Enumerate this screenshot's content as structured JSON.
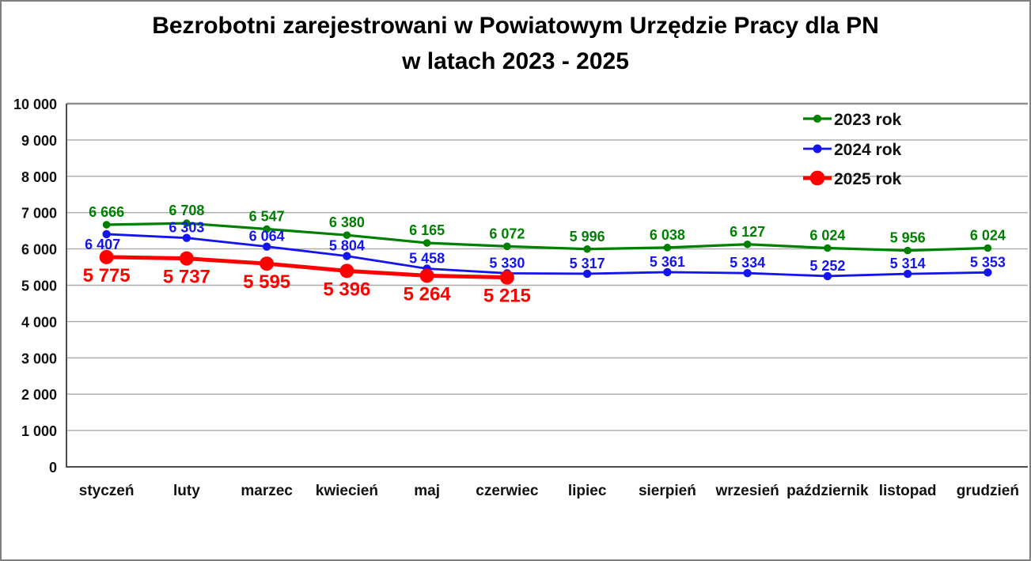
{
  "title": {
    "line1": "Bezrobotni zarejestrowani w Powiatowym Urzędzie Pracy dla PN",
    "line2": "w latach 2023 - 2025"
  },
  "colors": {
    "series_2023": "#008000",
    "series_2024": "#1414f0",
    "series_2025": "#ff0000",
    "gridline": "#ababab",
    "axis": "#4d4d4d",
    "text": "#111111",
    "frame": "#7f7f7f",
    "background": "#ffffff"
  },
  "chart_data": {
    "type": "line",
    "title": "Bezrobotni zarejestrowani w Powiatowym Urzędzie Pracy dla PN w latach 2023 - 2025",
    "xlabel": "",
    "ylabel": "",
    "ylim": [
      0,
      10000
    ],
    "ytick_step": 1000,
    "grid": true,
    "legend_position": "top-right",
    "number_format": "space-thousands",
    "categories": [
      "styczeń",
      "luty",
      "marzec",
      "kwiecień",
      "maj",
      "czerwiec",
      "lipiec",
      "sierpień",
      "wrzesień",
      "październik",
      "listopad",
      "grudzień"
    ],
    "yticks": [
      "0",
      "1 000",
      "2 000",
      "3 000",
      "4 000",
      "5 000",
      "6 000",
      "7 000",
      "8 000",
      "9 000",
      "10 000"
    ],
    "series": [
      {
        "name": "2023 rok",
        "color": "#008000",
        "values": [
          6666,
          6708,
          6547,
          6380,
          6165,
          6072,
          5996,
          6038,
          6127,
          6024,
          5956,
          6024
        ],
        "labels": [
          "6 666",
          "6 708",
          "6 547",
          "6 380",
          "6 165",
          "6 072",
          "5 996",
          "6 038",
          "6 127",
          "6 024",
          "5 956",
          "6 024"
        ],
        "label_placement": "above",
        "marker": "circle"
      },
      {
        "name": "2024 rok",
        "color": "#1414f0",
        "values": [
          6407,
          6303,
          6064,
          5804,
          5458,
          5330,
          5317,
          5361,
          5334,
          5252,
          5314,
          5353
        ],
        "labels": [
          "6 407",
          "6 303",
          "6 064",
          "5 804",
          "5 458",
          "5 330",
          "5 317",
          "5 361",
          "5 334",
          "5 252",
          "5 314",
          "5 353"
        ],
        "label_placement": "above",
        "label_placement_overrides": {
          "0": "below"
        },
        "marker": "circle"
      },
      {
        "name": "2025 rok",
        "color": "#ff0000",
        "values": [
          5775,
          5737,
          5595,
          5396,
          5264,
          5215
        ],
        "labels": [
          "5 775",
          "5 737",
          "5 595",
          "5 396",
          "5 264",
          "5 215"
        ],
        "label_placement": "below",
        "marker": "circle"
      }
    ]
  }
}
